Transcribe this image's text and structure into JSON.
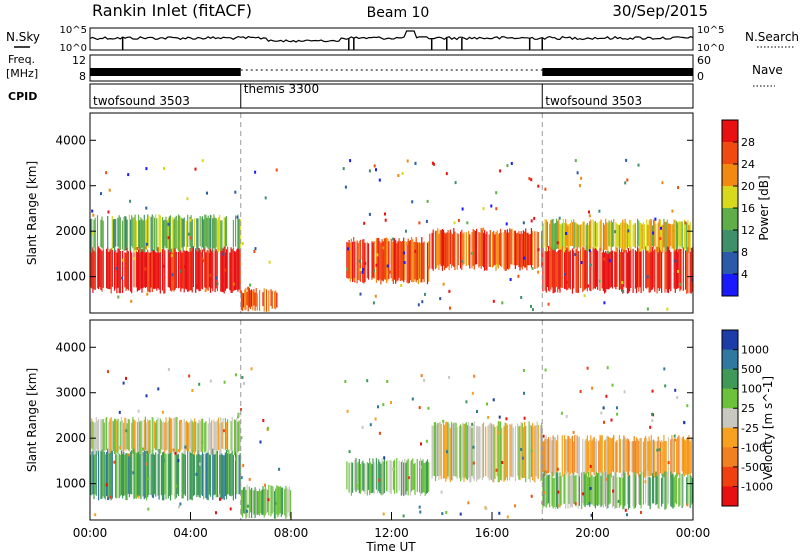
{
  "header": {
    "station": "Rankin Inlet (fitACF)",
    "beam": "Beam 10",
    "date": "30/Sep/2015"
  },
  "status_panels": {
    "nsky_label": "N.Sky",
    "nsky_ticks": [
      "10^5",
      "10^0"
    ],
    "nsearch_label": "N.Search",
    "nsearch_ticks": [
      "10^5",
      "10^0"
    ],
    "freq_label": [
      "Freq.",
      "[MHz]"
    ],
    "freq_ticks": [
      "12",
      "8"
    ],
    "nave_label": "Nave",
    "nave_ticks": [
      "60",
      "0"
    ],
    "cpid_label": "CPID",
    "cpid_segments": [
      {
        "name": "twofsound 3503",
        "start_hour": 0,
        "end_hour": 6
      },
      {
        "name": "themis 3300",
        "start_hour": 6,
        "end_hour": 18
      },
      {
        "name": "twofsound 3503",
        "start_hour": 18,
        "end_hour": 24
      }
    ]
  },
  "chart_data": [
    {
      "type": "heatmap",
      "name": "power",
      "ylabel": "Slant Range [km]",
      "xlabel": "",
      "xlim": [
        0,
        24
      ],
      "ylim": [
        200,
        4600
      ],
      "yticks": [
        1000,
        2000,
        3000,
        4000
      ],
      "colorbar_label": "Power [dB]",
      "colorbar_ticks": [
        "4",
        "8",
        "12",
        "16",
        "20",
        "24",
        "28"
      ],
      "colorbar_colors": [
        "#1a1aff",
        "#2c59a8",
        "#3f8f6a",
        "#5fae4a",
        "#d8d81c",
        "#f08a10",
        "#f04a10",
        "#e81010"
      ],
      "bands": [
        {
          "t0": 0,
          "t1": 6,
          "r0": 700,
          "r1": 1600,
          "level": 7
        },
        {
          "t0": 0,
          "t1": 6,
          "r0": 1600,
          "r1": 2300,
          "level": 3
        },
        {
          "t0": 6,
          "t1": 7.5,
          "r0": 300,
          "r1": 700,
          "level": 6
        },
        {
          "t0": 10.2,
          "t1": 13.5,
          "r0": 900,
          "r1": 1800,
          "level": 6
        },
        {
          "t0": 13.5,
          "t1": 18,
          "r0": 1200,
          "r1": 2000,
          "level": 6
        },
        {
          "t0": 18,
          "t1": 24,
          "r0": 700,
          "r1": 1600,
          "level": 7
        },
        {
          "t0": 18,
          "t1": 24,
          "r0": 1600,
          "r1": 2200,
          "level": 4
        }
      ]
    },
    {
      "type": "heatmap",
      "name": "velocity",
      "ylabel": "Slant Range [km]",
      "xlabel": "Time UT",
      "xlim": [
        0,
        24
      ],
      "ylim": [
        200,
        4600
      ],
      "yticks": [
        1000,
        2000,
        3000,
        4000
      ],
      "xticks": [
        "00:00",
        "04:00",
        "08:00",
        "12:00",
        "16:00",
        "20:00",
        "00:00"
      ],
      "colorbar_label": "Velocity [m s^-1]",
      "colorbar_ticks": [
        "1000",
        "500",
        "100",
        "25",
        "-25",
        "-100",
        "-500",
        "-1000"
      ],
      "colorbar_colors": [
        "#1c3ca8",
        "#2f78a0",
        "#3f9a5a",
        "#6cc23a",
        "#c8c8c0",
        "#f8a020",
        "#f08020",
        "#f04010",
        "#e81010"
      ],
      "bands": [
        {
          "t0": 0,
          "t1": 6,
          "r0": 700,
          "r1": 1700,
          "level": 2
        },
        {
          "t0": 0,
          "t1": 6,
          "r0": 1700,
          "r1": 2400,
          "level": 4
        },
        {
          "t0": 6,
          "t1": 8,
          "r0": 300,
          "r1": 900,
          "level": 3
        },
        {
          "t0": 10.2,
          "t1": 13.5,
          "r0": 800,
          "r1": 1500,
          "level": 3
        },
        {
          "t0": 13.5,
          "t1": 18,
          "r0": 1100,
          "r1": 2300,
          "level": 4
        },
        {
          "t0": 18,
          "t1": 24,
          "r0": 1200,
          "r1": 2000,
          "level": 5
        },
        {
          "t0": 18,
          "t1": 24,
          "r0": 500,
          "r1": 1200,
          "level": 3
        }
      ]
    }
  ]
}
